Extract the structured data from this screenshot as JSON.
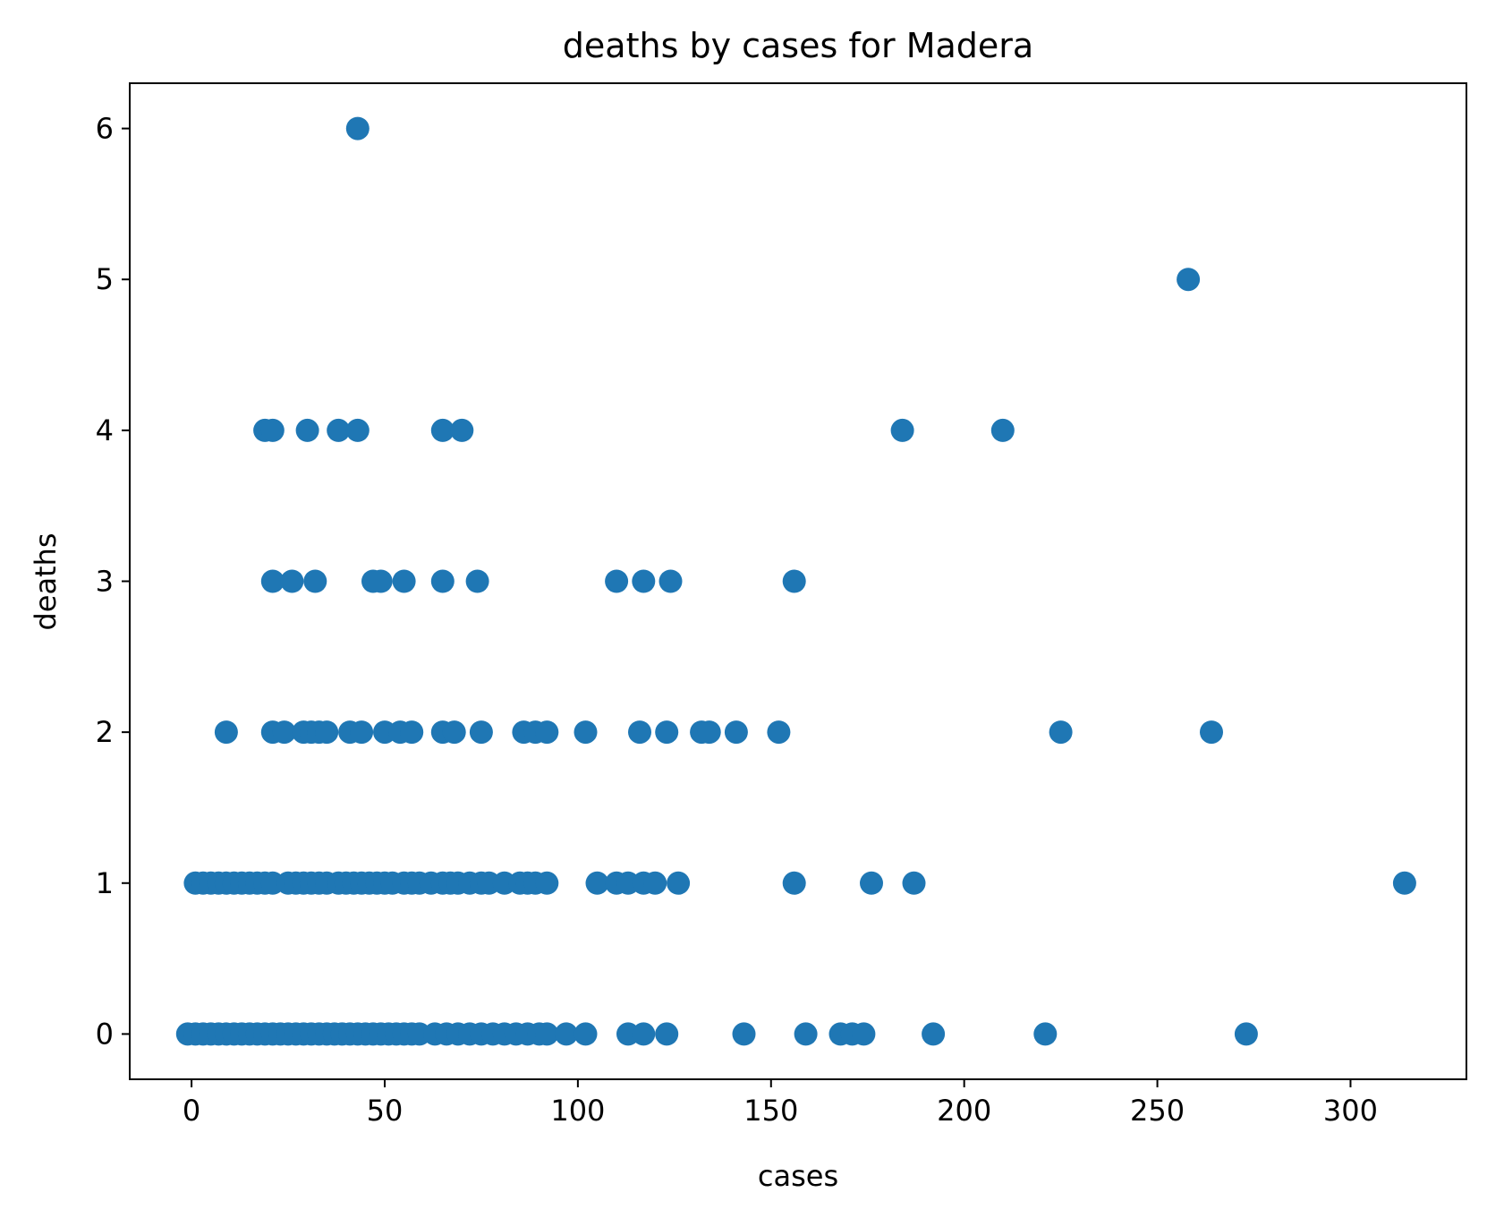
{
  "chart_data": {
    "type": "scatter",
    "title": "deaths by cases for Madera",
    "xlabel": "cases",
    "ylabel": "deaths",
    "xlim": [
      -16,
      330
    ],
    "ylim": [
      -0.3,
      6.3
    ],
    "xticks": [
      0,
      50,
      100,
      150,
      200,
      250,
      300
    ],
    "yticks": [
      0,
      1,
      2,
      3,
      4,
      5,
      6
    ],
    "grid": false,
    "legend": "none",
    "marker_color": "#1f77b4",
    "series": [
      {
        "points": [
          [
            43,
            6
          ],
          [
            258,
            5
          ],
          [
            19,
            4
          ],
          [
            21,
            4
          ],
          [
            30,
            4
          ],
          [
            38,
            4
          ],
          [
            43,
            4
          ],
          [
            65,
            4
          ],
          [
            70,
            4
          ],
          [
            184,
            4
          ],
          [
            210,
            4
          ],
          [
            21,
            3
          ],
          [
            26,
            3
          ],
          [
            32,
            3
          ],
          [
            47,
            3
          ],
          [
            49,
            3
          ],
          [
            55,
            3
          ],
          [
            65,
            3
          ],
          [
            74,
            3
          ],
          [
            110,
            3
          ],
          [
            117,
            3
          ],
          [
            124,
            3
          ],
          [
            156,
            3
          ],
          [
            9,
            2
          ],
          [
            21,
            2
          ],
          [
            24,
            2
          ],
          [
            29,
            2
          ],
          [
            31,
            2
          ],
          [
            33,
            2
          ],
          [
            35,
            2
          ],
          [
            41,
            2
          ],
          [
            44,
            2
          ],
          [
            50,
            2
          ],
          [
            54,
            2
          ],
          [
            57,
            2
          ],
          [
            65,
            2
          ],
          [
            68,
            2
          ],
          [
            75,
            2
          ],
          [
            86,
            2
          ],
          [
            89,
            2
          ],
          [
            92,
            2
          ],
          [
            102,
            2
          ],
          [
            116,
            2
          ],
          [
            123,
            2
          ],
          [
            132,
            2
          ],
          [
            134,
            2
          ],
          [
            141,
            2
          ],
          [
            152,
            2
          ],
          [
            225,
            2
          ],
          [
            264,
            2
          ],
          [
            1,
            1
          ],
          [
            3,
            1
          ],
          [
            5,
            1
          ],
          [
            7,
            1
          ],
          [
            9,
            1
          ],
          [
            11,
            1
          ],
          [
            13,
            1
          ],
          [
            15,
            1
          ],
          [
            17,
            1
          ],
          [
            19,
            1
          ],
          [
            21,
            1
          ],
          [
            25,
            1
          ],
          [
            27,
            1
          ],
          [
            29,
            1
          ],
          [
            31,
            1
          ],
          [
            33,
            1
          ],
          [
            35,
            1
          ],
          [
            38,
            1
          ],
          [
            40,
            1
          ],
          [
            42,
            1
          ],
          [
            44,
            1
          ],
          [
            46,
            1
          ],
          [
            48,
            1
          ],
          [
            50,
            1
          ],
          [
            52,
            1
          ],
          [
            55,
            1
          ],
          [
            57,
            1
          ],
          [
            59,
            1
          ],
          [
            62,
            1
          ],
          [
            65,
            1
          ],
          [
            67,
            1
          ],
          [
            69,
            1
          ],
          [
            72,
            1
          ],
          [
            75,
            1
          ],
          [
            77,
            1
          ],
          [
            81,
            1
          ],
          [
            85,
            1
          ],
          [
            87,
            1
          ],
          [
            89,
            1
          ],
          [
            92,
            1
          ],
          [
            105,
            1
          ],
          [
            110,
            1
          ],
          [
            113,
            1
          ],
          [
            117,
            1
          ],
          [
            120,
            1
          ],
          [
            126,
            1
          ],
          [
            156,
            1
          ],
          [
            176,
            1
          ],
          [
            187,
            1
          ],
          [
            314,
            1
          ],
          [
            -1,
            0
          ],
          [
            1,
            0
          ],
          [
            3,
            0
          ],
          [
            5,
            0
          ],
          [
            7,
            0
          ],
          [
            9,
            0
          ],
          [
            11,
            0
          ],
          [
            13,
            0
          ],
          [
            15,
            0
          ],
          [
            17,
            0
          ],
          [
            19,
            0
          ],
          [
            21,
            0
          ],
          [
            23,
            0
          ],
          [
            25,
            0
          ],
          [
            27,
            0
          ],
          [
            29,
            0
          ],
          [
            31,
            0
          ],
          [
            33,
            0
          ],
          [
            35,
            0
          ],
          [
            37,
            0
          ],
          [
            39,
            0
          ],
          [
            41,
            0
          ],
          [
            43,
            0
          ],
          [
            45,
            0
          ],
          [
            47,
            0
          ],
          [
            49,
            0
          ],
          [
            51,
            0
          ],
          [
            53,
            0
          ],
          [
            55,
            0
          ],
          [
            57,
            0
          ],
          [
            59,
            0
          ],
          [
            63,
            0
          ],
          [
            66,
            0
          ],
          [
            69,
            0
          ],
          [
            72,
            0
          ],
          [
            75,
            0
          ],
          [
            78,
            0
          ],
          [
            81,
            0
          ],
          [
            84,
            0
          ],
          [
            87,
            0
          ],
          [
            90,
            0
          ],
          [
            92,
            0
          ],
          [
            97,
            0
          ],
          [
            102,
            0
          ],
          [
            113,
            0
          ],
          [
            117,
            0
          ],
          [
            123,
            0
          ],
          [
            143,
            0
          ],
          [
            159,
            0
          ],
          [
            168,
            0
          ],
          [
            171,
            0
          ],
          [
            174,
            0
          ],
          [
            192,
            0
          ],
          [
            221,
            0
          ],
          [
            273,
            0
          ]
        ]
      }
    ]
  }
}
